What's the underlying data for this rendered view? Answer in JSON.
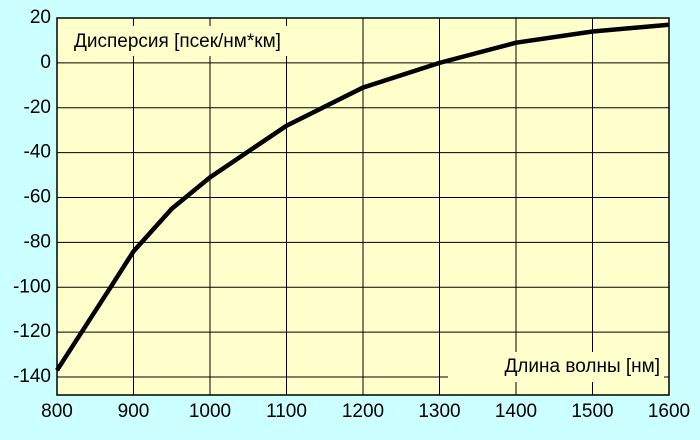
{
  "chart_data": {
    "type": "line",
    "ylabel": "Дисперсия [псек/нм*км]",
    "xlabel": "Длина волны [нм]",
    "x": [
      800,
      870,
      900,
      950,
      1000,
      1100,
      1200,
      1300,
      1400,
      1500,
      1600
    ],
    "series": [
      {
        "name": "Дисперсия",
        "color": "#000000",
        "values": [
          -137,
          -100,
          -84,
          -65,
          -51,
          -28,
          -11,
          0,
          9,
          14,
          17
        ]
      }
    ],
    "xlim": [
      800,
      1600
    ],
    "xticks": [
      800,
      900,
      1000,
      1100,
      1200,
      1300,
      1400,
      1500,
      1600
    ],
    "ylim": [
      -148,
      20
    ],
    "yticks": [
      -140,
      -120,
      -100,
      -80,
      -60,
      -40,
      -20,
      0,
      20
    ],
    "grid": true
  }
}
